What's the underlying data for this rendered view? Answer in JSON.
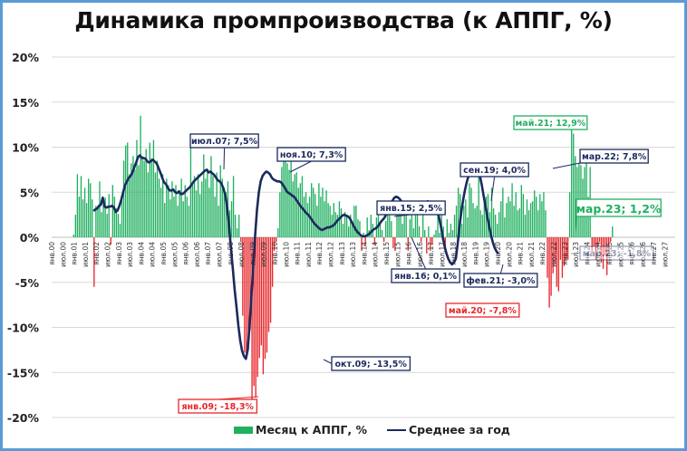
{
  "title": "Динамика промпроизводства (к АППГ, %)",
  "legend": {
    "bars_label": "Месяц к АППГ, %",
    "line_label": "Среднее за год"
  },
  "colors": {
    "positive_bar": "#21b060",
    "negative_bar": "#e8262b",
    "average_line": "#1b2a5e",
    "frame": "#5b9bd5",
    "grid": "#d9d9d9"
  },
  "chart_data": {
    "type": "bar+line",
    "title": "Динамика промпроизводства (к АППГ, %)",
    "xlabel": "",
    "ylabel": "",
    "ylim": [
      -20,
      20
    ],
    "yticks": [
      "20%",
      "15%",
      "10%",
      "5%",
      "0%",
      "-5%",
      "-10%",
      "-15%",
      "-20%"
    ],
    "grid": true,
    "legend_position": "bottom",
    "x_tick_labels": [
      "янв.00",
      "июл.00",
      "янв.01",
      "июл.01",
      "янв.02",
      "июл.02",
      "янв.03",
      "июл.03",
      "янв.04",
      "июл.04",
      "янв.05",
      "июл.05",
      "янв.06",
      "июл.06",
      "янв.07",
      "июл.07",
      "янв.08",
      "июл.08",
      "янв.09",
      "июл.09",
      "янв.10",
      "июл.10",
      "янв.11",
      "июл.11",
      "янв.12",
      "июл.12",
      "янв.13",
      "июл.13",
      "янв.14",
      "июл.14",
      "янв.15",
      "июл.15",
      "янв.16",
      "июл.16",
      "янв.17",
      "июл.17",
      "янв.18",
      "июл.18",
      "янв.19",
      "июл.19",
      "янв.20",
      "июл.20",
      "янв.21",
      "июл.21",
      "янв.22",
      "июл.22",
      "янв.23",
      "июл.23",
      "янв.24",
      "июл.24",
      "янв.25",
      "июл.25",
      "янв.26",
      "июл.26",
      "янв.27",
      "июл.27"
    ],
    "series": [
      {
        "name": "Месяц к АППГ, %",
        "type": "bar",
        "start": "янв.00",
        "frequency": "monthly",
        "note": "approximate values read from the chart, monthly from янв.01 to мар.23",
        "values": [
          0.3,
          2.5,
          7,
          4.5,
          6.8,
          4.2,
          5.5,
          3.8,
          6.5,
          6,
          4.2,
          -5.5,
          3.5,
          3.2,
          6.2,
          2.8,
          3.6,
          4.4,
          2.6,
          4.8,
          -0.8,
          5.8,
          4.5,
          3.2,
          2.6,
          1.5,
          4.2,
          8.5,
          10.2,
          10.5,
          7,
          8.2,
          9,
          7.5,
          10.8,
          8,
          13.5,
          9,
          8.5,
          9.8,
          7.2,
          10.5,
          8.8,
          10.8,
          7.2,
          8.5,
          6.5,
          5.5,
          7,
          3.8,
          6.5,
          5.8,
          4.2,
          6.2,
          4.5,
          5.8,
          3.5,
          5.2,
          6.5,
          4,
          5.8,
          4.5,
          3.5,
          10,
          5.8,
          6.8,
          5.2,
          7,
          4.8,
          6.2,
          9.2,
          6.5,
          7.5,
          5.5,
          9,
          6.8,
          4.5,
          7.2,
          3.5,
          8,
          6.5,
          5.5,
          5,
          6.2,
          3,
          4,
          6.8,
          2.5,
          1,
          2.5,
          -0.5,
          -8.7,
          -12.8,
          -12.9,
          -12.5,
          -10.3,
          -18.3,
          -16.5,
          -17.8,
          -15.5,
          -13.4,
          -12,
          -15.2,
          -13.5,
          -12.8,
          -10.5,
          -9.5,
          -5.5,
          -1.5,
          -0.5,
          1,
          5,
          7.8,
          8.5,
          8.5,
          8.2,
          7.5,
          8.5,
          6.2,
          7,
          7.2,
          5.5,
          6,
          6.8,
          4.5,
          5,
          3.8,
          4.5,
          6,
          5.5,
          4.8,
          3.5,
          6,
          4.5,
          5.5,
          4,
          5.2,
          3.8,
          3.5,
          2.5,
          3.8,
          2.8,
          2.5,
          4,
          3.2,
          1.5,
          2.8,
          2.5,
          1.2,
          2.5,
          1.8,
          3.5,
          3.5,
          2,
          1.8,
          -1.5,
          0.5,
          -1,
          2.2,
          0.8,
          2.5,
          1.5,
          -0.8,
          2.2,
          3,
          1.5,
          0.8,
          -0.5,
          1.8,
          2.8,
          2.5,
          1.8,
          -1.2,
          -1.5,
          2.5,
          3.8,
          2.8,
          1.5,
          3.5,
          3.2,
          -1.5,
          2,
          3.2,
          1,
          3,
          2.8,
          1.2,
          -0.5,
          2.5,
          0.8,
          -1.8,
          1.2,
          -1.5,
          -0.8,
          0.3,
          0.8,
          2.8,
          0.5,
          3.5,
          1.2,
          -1.5,
          2,
          0.5,
          1.5,
          0.8,
          2.5,
          3.5,
          5.5,
          4.8,
          1.5,
          3.5,
          4.2,
          2.2,
          6,
          5.5,
          3.8,
          3.2,
          3.5,
          7.5,
          3,
          2.5,
          3.8,
          4.5,
          4.8,
          2.8,
          5.5,
          3.2,
          2.5,
          1.5,
          2.8,
          4,
          5.5,
          2.2,
          3.8,
          4.5,
          4,
          6,
          3.5,
          5,
          3,
          3.2,
          5.8,
          4.8,
          2.5,
          4.2,
          3,
          3.8,
          4,
          5.2,
          4.5,
          3,
          4.8,
          4,
          5,
          3,
          -4.5,
          -7.8,
          -6.5,
          -4,
          -3,
          -5.5,
          -6,
          -2.5,
          -4.5,
          -3.2,
          -2.5,
          -2.5,
          5,
          12.9,
          11.5,
          9,
          7.8,
          8.2,
          8,
          6.5,
          7.8,
          8.2,
          4.5,
          7.8,
          -1.5,
          -1,
          -2.5,
          -1.5,
          -0.5,
          -2.8,
          -3.5,
          -2,
          -4.2,
          -1.5,
          -0.5,
          1.2
        ]
      },
      {
        "name": "Среднее за год",
        "type": "line",
        "start": "дек.01",
        "frequency": "monthly",
        "note": "approximate 12-month rolling average, dec.01 to mar.23",
        "values": [
          2.9,
          3.1,
          3.2,
          3.5,
          3.6,
          4.4,
          3.4,
          3.3,
          3.4,
          3.4,
          3.5,
          3.3,
          2.8,
          3,
          3.5,
          4.2,
          5,
          5.8,
          6.2,
          6.6,
          6.8,
          7.2,
          7.8,
          8.3,
          8.9,
          9.1,
          8.8,
          8.8,
          8.7,
          8.4,
          8.3,
          8.5,
          8.6,
          8.4,
          8.2,
          7.7,
          7.2,
          6.6,
          6.1,
          5.9,
          5.5,
          5.2,
          5.2,
          5.3,
          5.0,
          4.9,
          5.1,
          4.8,
          4.8,
          5.0,
          5.2,
          5.4,
          5.6,
          5.9,
          6.2,
          6.4,
          6.6,
          6.8,
          7.0,
          7.2,
          7.4,
          7.5,
          7.2,
          7.3,
          7.1,
          6.9,
          6.6,
          6.3,
          6.2,
          5.9,
          5.4,
          4.6,
          3.2,
          1.2,
          -1.2,
          -3.5,
          -5.8,
          -7.8,
          -9.8,
          -11.5,
          -12.6,
          -13.2,
          -13.5,
          -12.5,
          -9.8,
          -6.5,
          -3.2,
          0.2,
          3,
          5,
          6.2,
          6.8,
          7.1,
          7.3,
          7.2,
          7,
          6.6,
          6.4,
          6.3,
          6.2,
          6.2,
          6.1,
          5.8,
          5.5,
          5.1,
          4.9,
          4.8,
          4.6,
          4.5,
          4.2,
          3.9,
          3.6,
          3.3,
          3.1,
          2.8,
          2.6,
          2.4,
          2.1,
          1.8,
          1.5,
          1.3,
          1.1,
          0.9,
          0.8,
          0.9,
          1.0,
          1.1,
          1.1,
          1.2,
          1.3,
          1.5,
          1.8,
          2.0,
          2.2,
          2.4,
          2.5,
          2.4,
          2.3,
          2.1,
          1.7,
          1.3,
          0.9,
          0.6,
          0.4,
          0.2,
          0.1,
          0.1,
          0.2,
          0.3,
          0.5,
          0.7,
          0.9,
          1.0,
          1.2,
          1.5,
          1.8,
          2.0,
          2.3,
          2.8,
          3.3,
          3.7,
          4.1,
          4.4,
          4.5,
          4.4,
          4.2,
          3.9,
          3.5,
          3.2,
          3.0,
          3.0,
          3.1,
          3.4,
          3.7,
          3.8,
          3.7,
          3.6,
          3.7,
          3.8,
          3.9,
          4.0,
          3.8,
          3.5,
          3.4,
          3.4,
          3.0,
          2.2,
          1.2,
          0,
          -1,
          -1.8,
          -2.4,
          -2.8,
          -3.0,
          -2.8,
          -2.4,
          -0.8,
          1.2,
          2.8,
          4.2,
          5.3,
          6.2,
          6.9,
          7.4,
          7.6,
          7.7,
          7.8,
          7.6,
          6.8,
          5.8,
          4.6,
          3.4,
          2.2,
          1.2,
          0.2,
          -0.6,
          -1.2,
          -1.6,
          -1.8
        ]
      }
    ],
    "annotations": [
      {
        "label": "июл.07; 7,5%",
        "series": "Среднее за год",
        "color": "#1b2a5e"
      },
      {
        "label": "ноя.10; 7,3%",
        "series": "Среднее за год",
        "color": "#1b2a5e"
      },
      {
        "label": "янв.15; 2,5%",
        "series": "Среднее за год",
        "color": "#1b2a5e"
      },
      {
        "label": "янв.16; 0,1%",
        "series": "Среднее за год",
        "color": "#1b2a5e"
      },
      {
        "label": "сен.19; 4,0%",
        "series": "Среднее за год",
        "color": "#1b2a5e"
      },
      {
        "label": "фев.21; -3,0%",
        "series": "Среднее за год",
        "color": "#1b2a5e"
      },
      {
        "label": "мар.22; 7,8%",
        "series": "Среднее за год",
        "color": "#1b2a5e"
      },
      {
        "label": "мар.23; -1,8%",
        "series": "Среднее за год",
        "color": "#1b2a5e",
        "faded": true
      },
      {
        "label": "окт.09; -13,5%",
        "series": "Среднее за год",
        "color": "#1b2a5e"
      },
      {
        "label": "янв.09; -18,3%",
        "series": "Месяц к АППГ, %",
        "color": "#e8262b"
      },
      {
        "label": "май.20; -7,8%",
        "series": "Месяц к АППГ, %",
        "color": "#e8262b"
      },
      {
        "label": "май.21; 12,9%",
        "series": "Месяц к АППГ, %",
        "color": "#21b060"
      },
      {
        "label": "мар.23; 1,2%",
        "series": "Месяц к АППГ, %",
        "color": "#21b060",
        "large": true
      }
    ]
  }
}
